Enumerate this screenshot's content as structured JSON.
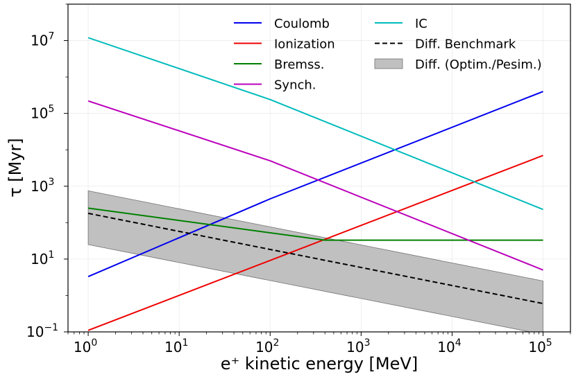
{
  "chart_data": {
    "type": "line",
    "xscale": "log",
    "yscale": "log",
    "xlim": [
      0.6,
      200000
    ],
    "ylim": [
      0.1,
      100000000
    ],
    "xlabel": "e⁺ kinetic energy [MeV]",
    "ylabel": "τ [Myr]",
    "grid": true,
    "legend_position": "top-right",
    "x_ticks": [
      {
        "value": 1,
        "base": "10",
        "exp": "0"
      },
      {
        "value": 10,
        "base": "10",
        "exp": "1"
      },
      {
        "value": 100,
        "base": "10",
        "exp": "2"
      },
      {
        "value": 1000,
        "base": "10",
        "exp": "3"
      },
      {
        "value": 10000,
        "base": "10",
        "exp": "4"
      },
      {
        "value": 100000,
        "base": "10",
        "exp": "5"
      }
    ],
    "y_ticks": [
      {
        "value": 0.1,
        "base": "10",
        "exp": "−1"
      },
      {
        "value": 10,
        "base": "10",
        "exp": "1"
      },
      {
        "value": 1000,
        "base": "10",
        "exp": "3"
      },
      {
        "value": 100000,
        "base": "10",
        "exp": "5"
      },
      {
        "value": 10000000,
        "base": "10",
        "exp": "7"
      }
    ],
    "series": [
      {
        "name": "Coulomb",
        "color": "#0000ee",
        "style": "solid",
        "x": [
          1,
          100,
          100000
        ],
        "y": [
          3.3,
          450,
          400000
        ]
      },
      {
        "name": "Ionization",
        "color": "#ee0000",
        "style": "solid",
        "x": [
          1,
          100000
        ],
        "y": [
          0.11,
          7000
        ]
      },
      {
        "name": "Bremss.",
        "color": "#008000",
        "style": "solid",
        "x": [
          1,
          400,
          100000
        ],
        "y": [
          250,
          33,
          33
        ]
      },
      {
        "name": "Synch.",
        "color": "#bb00bb",
        "style": "solid",
        "x": [
          1,
          100,
          100000
        ],
        "y": [
          220000,
          5000,
          5
        ]
      },
      {
        "name": "IC",
        "color": "#00bbbb",
        "style": "solid",
        "x": [
          1,
          100,
          100000
        ],
        "y": [
          12000000,
          240000,
          230
        ]
      },
      {
        "name": "Diff. Benchmark",
        "color": "#000000",
        "style": "dashed",
        "x": [
          1,
          100000
        ],
        "y": [
          180,
          0.6
        ]
      }
    ],
    "band": {
      "name": "Diff. (Optim./Pesim.)",
      "color": "#c0c0c0",
      "edge_color": "#707070",
      "x": [
        1,
        100000
      ],
      "upper": [
        750,
        2.5
      ],
      "lower": [
        25,
        0.085
      ]
    },
    "legend_columns": [
      [
        "Coulomb",
        "Ionization",
        "Bremss.",
        "Synch."
      ],
      [
        "IC",
        "Diff. Benchmark",
        "Diff. (Optim./Pesim.)"
      ]
    ]
  }
}
